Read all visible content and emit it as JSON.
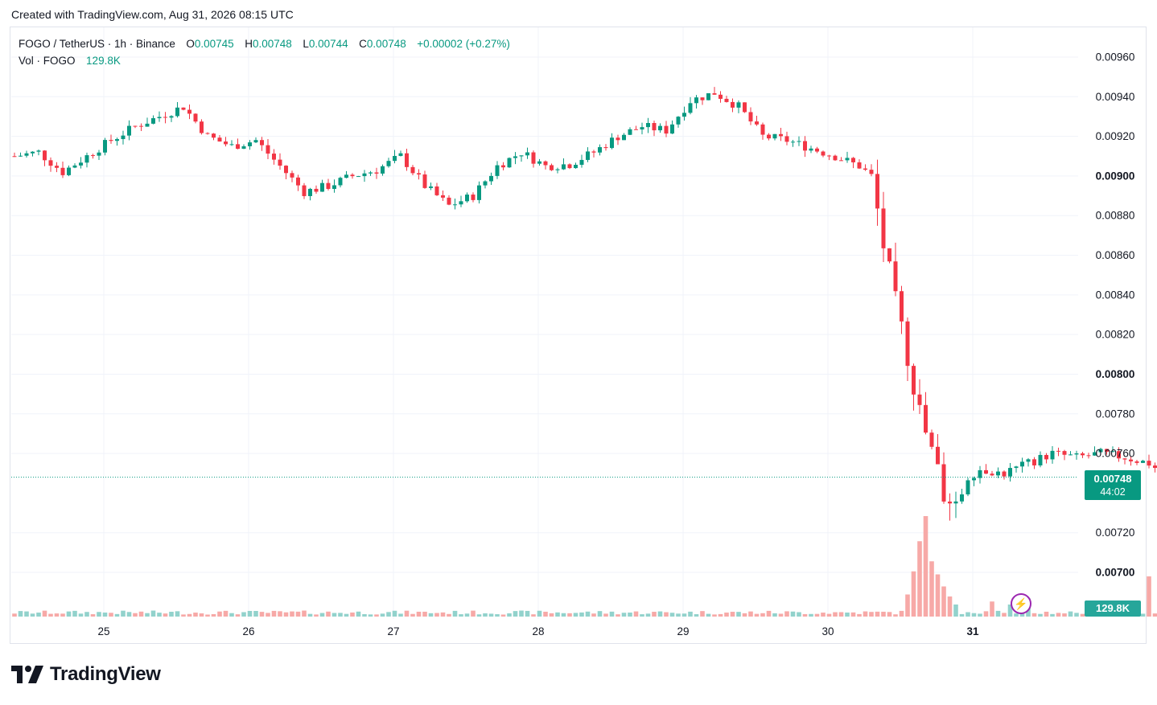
{
  "header": {
    "created": "Created with TradingView.com, Aug 31, 2026 08:15 UTC"
  },
  "legend": {
    "symbol": "FOGO / TetherUS · 1h · Binance",
    "o_label": "O",
    "o": "0.00745",
    "h_label": "H",
    "h": "0.00748",
    "l_label": "L",
    "l": "0.00744",
    "c_label": "C",
    "c": "0.00748",
    "change": "+0.00002 (+0.27%)",
    "vol_label": "Vol · FOGO",
    "vol": "129.8K"
  },
  "price_tag": {
    "price": "0.00748",
    "countdown": "44:02"
  },
  "volume_tag": "129.8K",
  "brand": {
    "name": "TradingView"
  },
  "colors": {
    "up": "#089981",
    "down": "#f23645",
    "vol_up": "#92d2cc",
    "vol_down": "#f7a9a7",
    "grid": "#f0f3fa"
  },
  "icons": {
    "alert": "lightning-bolt-icon",
    "logo": "tradingview-logo-icon"
  },
  "chart_data": {
    "type": "candlestick",
    "title": "FOGO / TetherUS · 1h · Binance",
    "y_ticks": [
      "0.00960",
      "0.00940",
      "0.00920",
      "0.00900",
      "0.00880",
      "0.00860",
      "0.00840",
      "0.00820",
      "0.00800",
      "0.00780",
      "0.00760",
      "0.00720",
      "0.00700"
    ],
    "y_ticks_bold": [
      "0.00900",
      "0.00800",
      "0.00700"
    ],
    "x_ticks": [
      "25",
      "26",
      "27",
      "28",
      "29",
      "30",
      "31"
    ],
    "x_ticks_bold": [
      "31"
    ],
    "ylim": [
      0.0069,
      0.0097
    ],
    "grid": true,
    "last_price": 0.00748,
    "anchors": [
      [
        0,
        0.0091
      ],
      [
        4,
        0.00912
      ],
      [
        8,
        0.00902
      ],
      [
        12,
        0.0091
      ],
      [
        16,
        0.00918
      ],
      [
        20,
        0.00925
      ],
      [
        24,
        0.0093
      ],
      [
        28,
        0.00935
      ],
      [
        32,
        0.0092
      ],
      [
        36,
        0.00915
      ],
      [
        40,
        0.00918
      ],
      [
        44,
        0.00905
      ],
      [
        48,
        0.00892
      ],
      [
        52,
        0.00895
      ],
      [
        56,
        0.009
      ],
      [
        60,
        0.00903
      ],
      [
        64,
        0.0091
      ],
      [
        68,
        0.00895
      ],
      [
        72,
        0.00885
      ],
      [
        76,
        0.0089
      ],
      [
        80,
        0.00905
      ],
      [
        84,
        0.00912
      ],
      [
        88,
        0.00905
      ],
      [
        92,
        0.00906
      ],
      [
        96,
        0.00912
      ],
      [
        100,
        0.0092
      ],
      [
        104,
        0.00925
      ],
      [
        108,
        0.00923
      ],
      [
        112,
        0.00938
      ],
      [
        116,
        0.00942
      ],
      [
        120,
        0.00935
      ],
      [
        124,
        0.0092
      ],
      [
        128,
        0.00918
      ],
      [
        132,
        0.00914
      ],
      [
        136,
        0.0091
      ],
      [
        140,
        0.00905
      ],
      [
        142,
        0.009
      ],
      [
        144,
        0.00865
      ],
      [
        146,
        0.00835
      ],
      [
        148,
        0.0081
      ],
      [
        150,
        0.0078
      ],
      [
        152,
        0.0076
      ],
      [
        154,
        0.0074
      ],
      [
        156,
        0.00735
      ],
      [
        158,
        0.00748
      ],
      [
        160,
        0.00752
      ],
      [
        164,
        0.0075
      ],
      [
        168,
        0.00755
      ],
      [
        172,
        0.0076
      ],
      [
        176,
        0.00758
      ],
      [
        180,
        0.0076
      ],
      [
        184,
        0.00758
      ],
      [
        188,
        0.00755
      ],
      [
        192,
        0.00752
      ],
      [
        196,
        0.00756
      ],
      [
        200,
        0.00755
      ],
      [
        204,
        0.00758
      ],
      [
        208,
        0.00755
      ],
      [
        212,
        0.00757
      ],
      [
        216,
        0.00755
      ],
      [
        218,
        0.0076
      ],
      [
        220,
        0.00762
      ],
      [
        222,
        0.00735
      ],
      [
        224,
        0.00728
      ],
      [
        226,
        0.00732
      ],
      [
        228,
        0.00737
      ],
      [
        230,
        0.00745
      ],
      [
        233,
        0.00748
      ]
    ],
    "volume_spikes": [
      [
        148,
        0.22
      ],
      [
        149,
        0.45
      ],
      [
        150,
        0.75
      ],
      [
        151,
        1.0
      ],
      [
        152,
        0.55
      ],
      [
        153,
        0.42
      ],
      [
        154,
        0.3
      ],
      [
        155,
        0.2
      ],
      [
        156,
        0.12
      ],
      [
        162,
        0.15
      ],
      [
        165,
        0.12
      ],
      [
        168,
        0.18
      ],
      [
        188,
        0.4
      ],
      [
        210,
        0.3
      ],
      [
        211,
        0.25
      ],
      [
        212,
        0.4
      ],
      [
        214,
        0.28
      ],
      [
        230,
        0.08
      ]
    ]
  }
}
